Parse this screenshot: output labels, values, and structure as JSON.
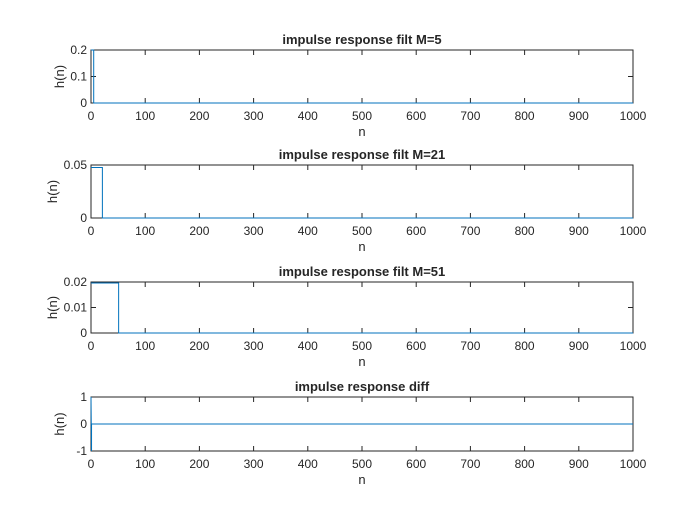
{
  "chart_data": [
    {
      "type": "line",
      "title": "impulse response filt M=5",
      "xlabel": "n",
      "ylabel": "h(n)",
      "xlim": [
        0,
        1000
      ],
      "ylim": [
        0,
        0.2
      ],
      "xticks": [
        "0",
        "100",
        "200",
        "300",
        "400",
        "500",
        "600",
        "700",
        "800",
        "900",
        "1000"
      ],
      "yticks": [
        "0",
        "0.1",
        "0.2"
      ],
      "grid": false,
      "color": "#0072BD",
      "series": [
        {
          "x": [
            0,
            5,
            5,
            1000
          ],
          "y": [
            0.2,
            0.2,
            0,
            0
          ]
        }
      ]
    },
    {
      "type": "line",
      "title": "impulse response filt M=21",
      "xlabel": "n",
      "ylabel": "h(n)",
      "xlim": [
        0,
        1000
      ],
      "ylim": [
        0,
        0.05
      ],
      "xticks": [
        "0",
        "100",
        "200",
        "300",
        "400",
        "500",
        "600",
        "700",
        "800",
        "900",
        "1000"
      ],
      "yticks": [
        "0",
        "0.05"
      ],
      "grid": false,
      "color": "#0072BD",
      "series": [
        {
          "x": [
            0,
            21,
            21,
            1000
          ],
          "y": [
            0.0476,
            0.0476,
            0,
            0
          ]
        }
      ]
    },
    {
      "type": "line",
      "title": "impulse response filt M=51",
      "xlabel": "n",
      "ylabel": "h(n)",
      "xlim": [
        0,
        1000
      ],
      "ylim": [
        0,
        0.02
      ],
      "xticks": [
        "0",
        "100",
        "200",
        "300",
        "400",
        "500",
        "600",
        "700",
        "800",
        "900",
        "1000"
      ],
      "yticks": [
        "0",
        "0.01",
        "0.02"
      ],
      "grid": false,
      "color": "#0072BD",
      "series": [
        {
          "x": [
            0,
            51,
            51,
            1000
          ],
          "y": [
            0.0196,
            0.0196,
            0,
            0
          ]
        }
      ]
    },
    {
      "type": "line",
      "title": "impulse response diff",
      "xlabel": "n",
      "ylabel": "h(n)",
      "xlim": [
        0,
        1000
      ],
      "ylim": [
        -1,
        1
      ],
      "xticks": [
        "0",
        "100",
        "200",
        "300",
        "400",
        "500",
        "600",
        "700",
        "800",
        "900",
        "1000"
      ],
      "yticks": [
        "-1",
        "0",
        "1"
      ],
      "grid": false,
      "color": "#0072BD",
      "series": [
        {
          "x": [
            0,
            0,
            1,
            1,
            1000
          ],
          "y": [
            1,
            1,
            -1,
            0,
            0
          ]
        }
      ]
    }
  ]
}
